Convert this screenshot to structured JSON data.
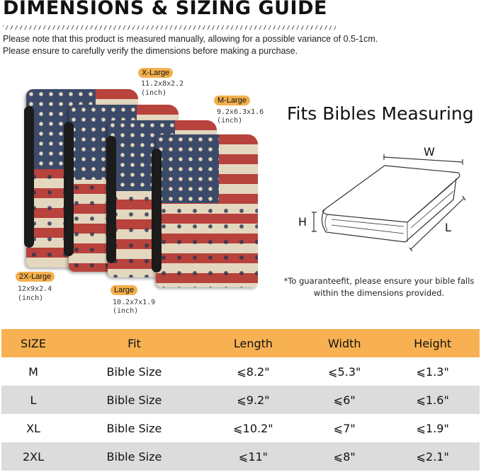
{
  "header": {
    "title": "DIMENSIONS & SIZING GUIDE",
    "notes": [
      "Please note that this product is measured manually, allowing for a possible variance of 0.5-1cm.",
      "Please ensure to carefully verify the dimensions before making a purchase."
    ]
  },
  "products": [
    {
      "label": "X-Large",
      "dims": "11.2x8x2.2",
      "unit": "(inch)"
    },
    {
      "label": "M-Large",
      "dims": "9.2x6.3x1.6",
      "unit": "(inch)"
    },
    {
      "label": "2X-Large",
      "dims": "12x9x2.4",
      "unit": "(inch)"
    },
    {
      "label": "Large",
      "dims": "10.2x7x1.9",
      "unit": "(inch)"
    }
  ],
  "accent": "#f7b152",
  "fit_panel": {
    "title": "Fits Bibles Measuring",
    "w": "W",
    "h": "H",
    "l": "L",
    "footnote": [
      "*To guaranteefit, please ensure your bible falls",
      "within the dimensions provided."
    ]
  },
  "table": {
    "headers": [
      "SIZE",
      "Fit",
      "Length",
      "Width",
      "Height"
    ],
    "rows": [
      [
        "M",
        "Bible Size",
        "⩽8.2\"",
        "⩽5.3\"",
        "⩽1.3\""
      ],
      [
        "L",
        "Bible Size",
        "⩽9.2\"",
        "⩽6\"",
        "⩽1.6\""
      ],
      [
        "XL",
        "Bible Size",
        "⩽10.2\"",
        "⩽7\"",
        "⩽1.9\""
      ],
      [
        "2XL",
        "Bible Size",
        "⩽11\"",
        "⩽8\"",
        "⩽2.1\""
      ]
    ]
  }
}
